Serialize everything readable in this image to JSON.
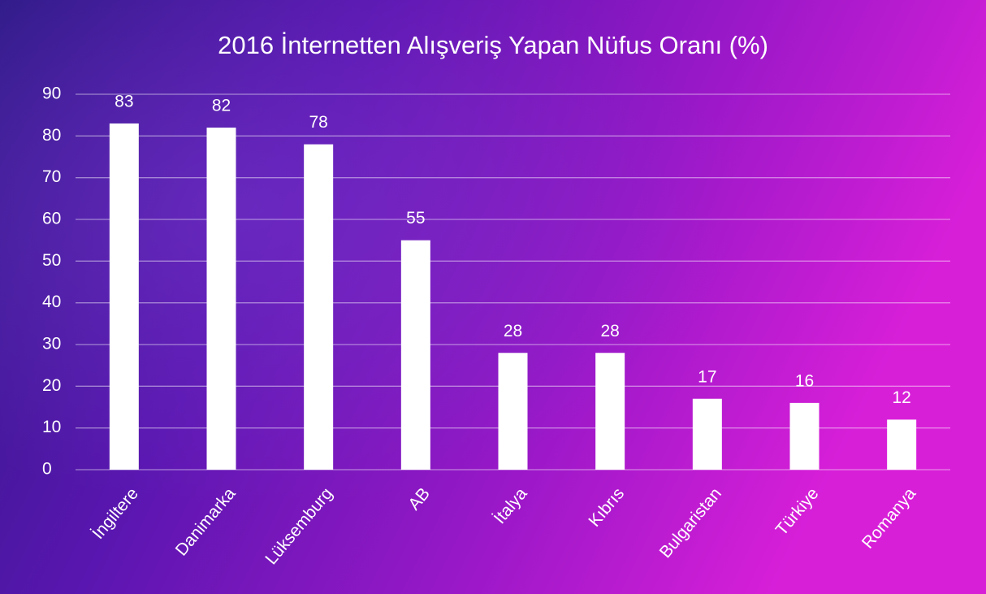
{
  "chart_data": {
    "type": "bar",
    "title": "2016 İnternetten Alışveriş Yapan Nüfus Oranı (%)",
    "categories": [
      "İngiltere",
      "Danimarka",
      "Lüksemburg",
      "AB",
      "İtalya",
      "Kıbrıs",
      "Bulgaristan",
      "Türkiye",
      "Romanya"
    ],
    "values": [
      83,
      82,
      78,
      55,
      28,
      28,
      17,
      16,
      12
    ],
    "color": "#ffffff",
    "ylim": [
      0,
      90
    ],
    "yticks": [
      0,
      10,
      20,
      30,
      40,
      50,
      60,
      70,
      80,
      90
    ],
    "grid": true
  }
}
